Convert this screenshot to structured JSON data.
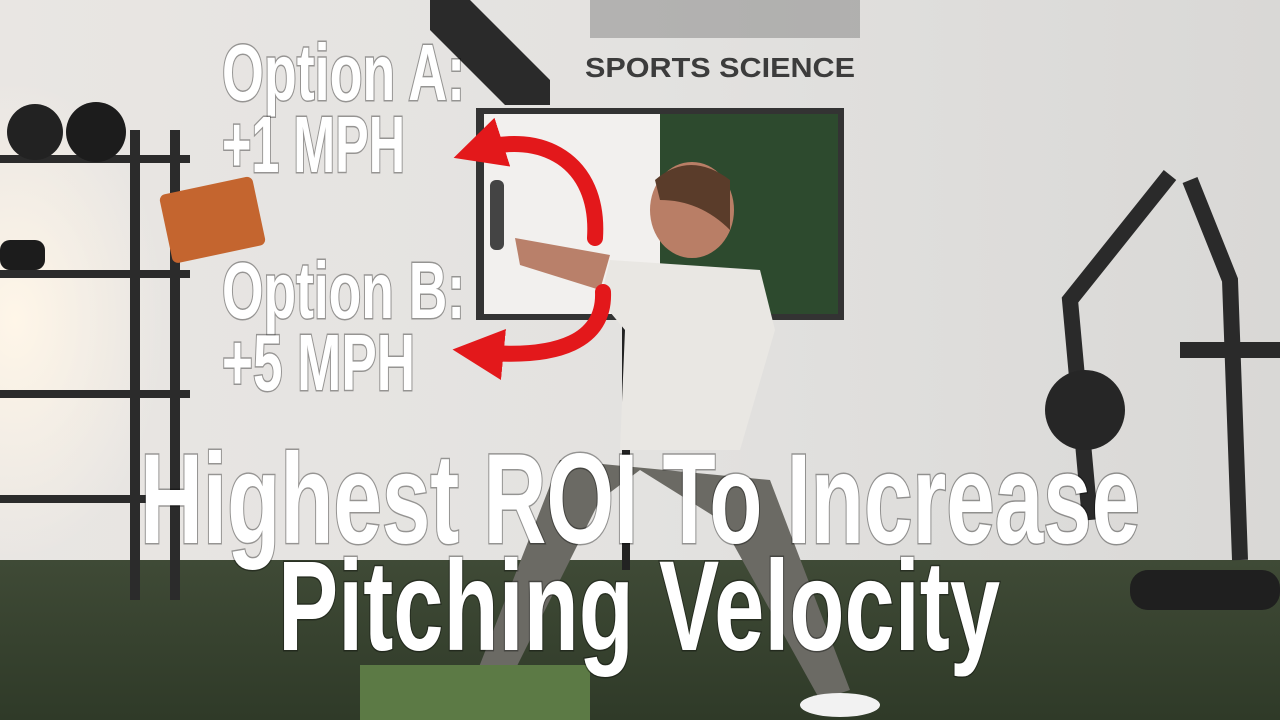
{
  "logo": {
    "subtitle": "SPORTS SCIENCE"
  },
  "callouts": [
    {
      "label": "Option A:",
      "value": "+1 MPH"
    },
    {
      "label": "Option B:",
      "value": "+5 MPH"
    }
  ],
  "headline": {
    "lines": [
      "Highest ROI To Increase",
      "Pitching Velocity"
    ]
  }
}
